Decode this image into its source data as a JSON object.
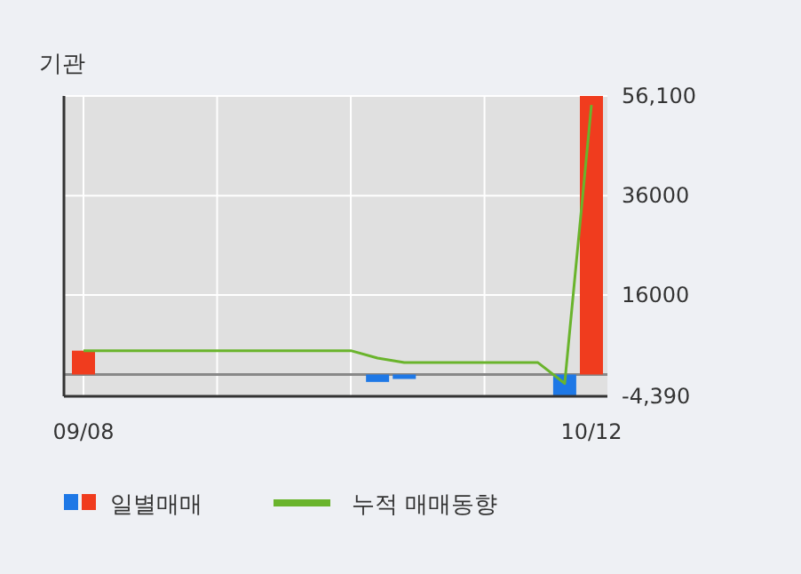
{
  "chart_data": {
    "type": "bar",
    "title": "기관",
    "categories": [
      "09/08",
      null,
      null,
      null,
      null,
      null,
      null,
      null,
      null,
      null,
      null,
      null,
      null,
      null,
      null,
      null,
      null,
      null,
      null,
      "10/12"
    ],
    "series": [
      {
        "name": "일별매매",
        "type": "bar",
        "colors": [
          "#f03c1e",
          "#1e78e6",
          "#1e78e6",
          "#1e78e6",
          "#1e78e6",
          "#1e78e6",
          "#1e78e6",
          "#1e78e6",
          "#1e78e6",
          "#1e78e6",
          "#1e78e6",
          "#1e78e6",
          "#1e78e6",
          "#1e78e6",
          "#1e78e6",
          "#1e78e6",
          "#1e78e6",
          "#1e78e6",
          "#1e78e6",
          "#f03c1e"
        ],
        "values": [
          4800,
          0,
          0,
          0,
          0,
          0,
          0,
          0,
          0,
          0,
          0,
          -1500,
          -900,
          0,
          0,
          0,
          0,
          0,
          -4200,
          56100
        ]
      },
      {
        "name": "누적 매매동향",
        "type": "line",
        "color": "#6ab42c",
        "values": [
          4800,
          4800,
          4800,
          4800,
          4800,
          4800,
          4800,
          4800,
          4800,
          4800,
          4800,
          3300,
          2400,
          2400,
          2400,
          2400,
          2400,
          2400,
          -1800,
          54300
        ]
      }
    ],
    "ylim": [
      -4390,
      56100
    ],
    "yticks": [
      {
        "value": -4390,
        "label": "-4,390"
      },
      16000,
      36000,
      {
        "value": 56100,
        "label": "56,100"
      }
    ],
    "ref_lines": [
      {
        "axis": "y",
        "value": 0,
        "color": "#888888"
      }
    ],
    "grid": true,
    "legend": "bottom"
  }
}
